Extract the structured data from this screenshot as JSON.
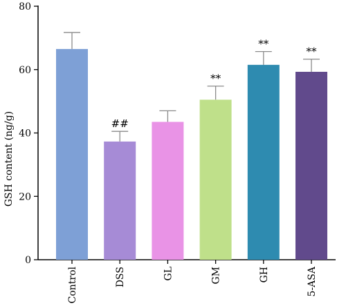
{
  "chart_data": {
    "type": "bar",
    "ylabel": "GSH content (ng/g)",
    "xlabel": "",
    "ylim": [
      0,
      80
    ],
    "yticks": [
      0,
      20,
      40,
      60,
      80
    ],
    "grid": false,
    "categories": [
      "Control",
      "DSS",
      "GL",
      "GM",
      "GH",
      "5-ASA"
    ],
    "values": [
      66.5,
      37.3,
      43.5,
      50.5,
      61.5,
      59.3
    ],
    "errors": [
      5.2,
      3.2,
      3.5,
      4.3,
      4.2,
      4.0
    ],
    "annotations": [
      "",
      "##",
      "",
      "**",
      "**",
      "**"
    ],
    "colors": [
      "#7ea0d6",
      "#a68bd6",
      "#e993e6",
      "#bfe08a",
      "#2e8bb0",
      "#614a8c"
    ]
  }
}
